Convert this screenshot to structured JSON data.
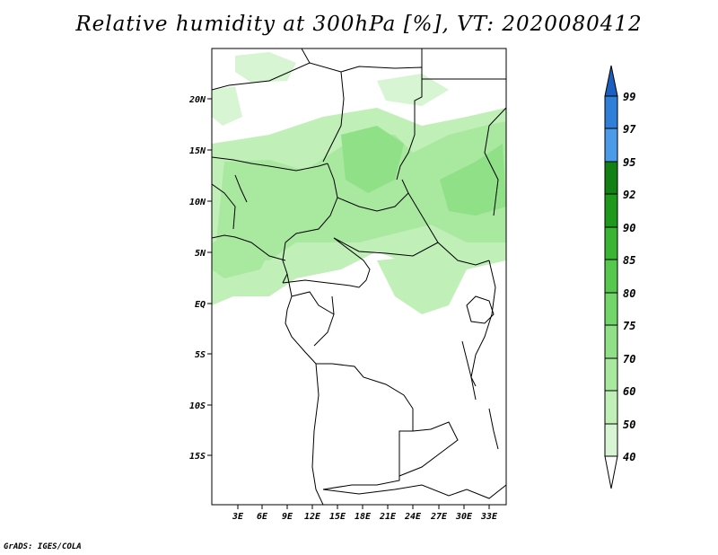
{
  "title": "Relative humidity at 300hPa [%], VT: 2020080412",
  "credit": "GrADS: IGES/COLA",
  "map": {
    "lon_labels": [
      "3E",
      "6E",
      "9E",
      "12E",
      "15E",
      "18E",
      "21E",
      "24E",
      "27E",
      "30E",
      "33E"
    ],
    "lat_labels": [
      "20N",
      "15N",
      "10N",
      "5N",
      "EQ",
      "5S",
      "10S",
      "15S"
    ]
  },
  "colorbar": {
    "levels": [
      "40",
      "50",
      "60",
      "70",
      "75",
      "80",
      "85",
      "90",
      "92",
      "95",
      "97",
      "99"
    ],
    "colors": [
      "#eefbec",
      "#d7f5d2",
      "#c0efb8",
      "#a9e89f",
      "#8fe087",
      "#72d66a",
      "#55c84d",
      "#3ab533",
      "#1f991c",
      "#128012",
      "#4c9be8",
      "#2f7ed8",
      "#1b5fc0"
    ]
  }
}
